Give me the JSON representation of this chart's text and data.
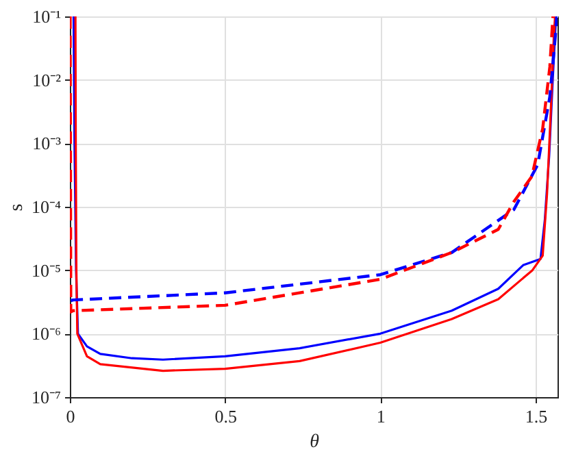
{
  "chart_data": {
    "type": "line",
    "xlabel": "θ",
    "ylabel": "s",
    "log": "y",
    "grid": true,
    "marker": "none",
    "xlim": [
      0,
      1.5708
    ],
    "ylim": [
      1e-07,
      0.1
    ],
    "xticks": [
      0,
      0.5,
      1,
      1.5
    ],
    "yticks": [
      {
        "value": 1e-07,
        "label": "10⁻⁷"
      },
      {
        "value": 1e-06,
        "label": "10⁻⁶"
      },
      {
        "value": 1e-05,
        "label": "10⁻⁵"
      },
      {
        "value": 0.0001,
        "label": "10⁻⁴"
      },
      {
        "value": 0.001,
        "label": "10⁻³"
      },
      {
        "value": 0.01,
        "label": "10⁻²"
      },
      {
        "value": 0.1,
        "label": "10⁻¹"
      }
    ],
    "series": [
      {
        "color": "#0000ff",
        "line_style": "solid",
        "x": [
          0.012,
          0.015,
          0.02,
          0.026,
          0.055,
          0.098,
          0.2,
          0.3,
          0.5,
          0.74,
          1,
          1.23,
          1.38,
          1.46,
          1.516,
          1.53,
          1.544,
          1.556,
          1.566
        ],
        "values": [
          0.1,
          0.001,
          1e-05,
          1e-06,
          6.3e-07,
          4.8e-07,
          4.1e-07,
          3.9e-07,
          4.4e-07,
          5.9e-07,
          1e-06,
          2.3e-06,
          5.1e-06,
          1.2e-05,
          1.5e-05,
          6.3e-05,
          0.00065,
          0.0115,
          0.1
        ]
      },
      {
        "color": "#ff0000",
        "line_style": "solid",
        "x": [
          0.018,
          0.019,
          0.021,
          0.024,
          0.055,
          0.098,
          0.3,
          0.5,
          0.74,
          1,
          1.23,
          1.38,
          1.49,
          1.523,
          1.537,
          1.548,
          1.559,
          1.563
        ],
        "values": [
          0.1,
          0.001,
          1e-05,
          1e-06,
          4.4e-07,
          3.3e-07,
          2.6e-07,
          2.8e-07,
          3.7e-07,
          7.2e-07,
          1.7e-06,
          3.5e-06,
          1e-05,
          1.7e-05,
          0.00016,
          0.0024,
          0.05,
          0.1
        ]
      },
      {
        "color": "#0000ff",
        "line_style": "dashed",
        "x": [
          0.003,
          0.01,
          0.5,
          1,
          1.23,
          1.43,
          1.507,
          1.546,
          1.564,
          1.568
        ],
        "values": [
          3.3e-06,
          3.4e-06,
          4.4e-06,
          8.5e-06,
          1.9e-05,
          9e-05,
          0.00046,
          0.0054,
          0.05,
          0.1
        ]
      },
      {
        "color": "#ff0000",
        "line_style": "dashed",
        "x": [
          0.001,
          0.003,
          0.01,
          0.5,
          1,
          1.23,
          1.38,
          1.43,
          1.488,
          1.523,
          1.546,
          1.556
        ],
        "values": [
          0.1,
          2.2e-06,
          2.3e-06,
          2.8e-06,
          7.2e-06,
          1.9e-05,
          4.4e-05,
          0.00012,
          0.0003,
          0.0017,
          0.016,
          0.1
        ]
      }
    ]
  }
}
